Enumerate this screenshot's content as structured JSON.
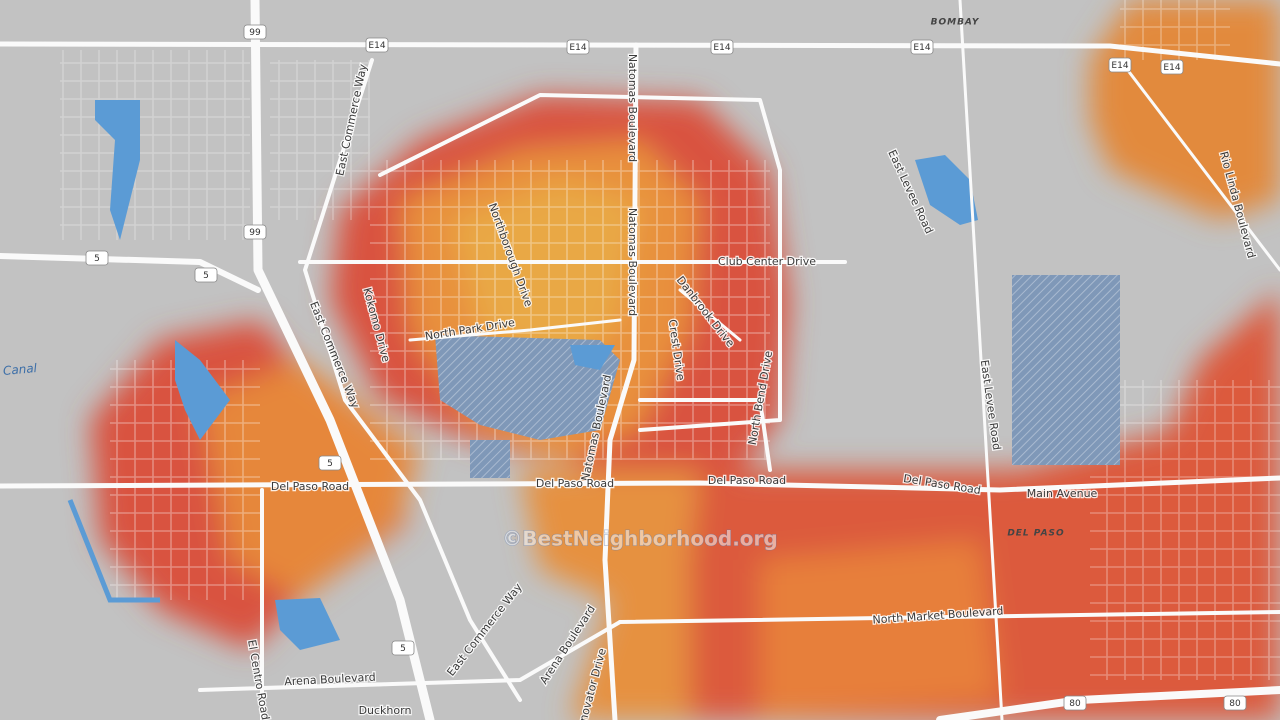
{
  "map": {
    "watermark": "©BestNeighborhood.org",
    "places": [
      "BOMBAY",
      "DEL PASO"
    ],
    "shields": [
      "E14",
      "E14",
      "E14",
      "E14",
      "E14",
      "E14",
      "99",
      "99",
      "5",
      "5",
      "5",
      "5",
      "80",
      "80"
    ],
    "water_labels": [
      "Canal"
    ],
    "roads": [
      "East Commerce Way",
      "Natomas Boulevard",
      "Northborough Drive",
      "Natomas Boulevard",
      "Club Center Drive",
      "East Levee Road",
      "Rio Linda Boulevard",
      "Kokomo Drive",
      "North Park Drive",
      "Danbrook Drive",
      "Crest Drive",
      "East Commerce Way",
      "North Bend Drive",
      "East Levee Road",
      "Natomas Boulevard",
      "Del Paso Road",
      "Del Paso Road",
      "Del Paso Road",
      "Del Paso Road",
      "Main Avenue",
      "North Market Boulevard",
      "East Commerce Way",
      "Arena Boulevard",
      "Innovator Drive",
      "Arena Boulevard",
      "El Centro Road",
      "Duckhorn"
    ]
  }
}
